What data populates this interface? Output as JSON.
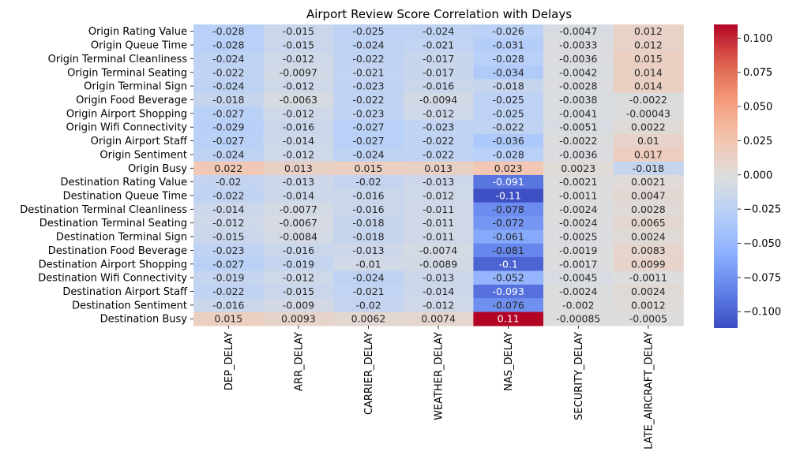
{
  "chart_data": {
    "type": "heatmap",
    "title": "Airport Review Score Correlation with Delays",
    "columns": [
      "DEP_DELAY",
      "ARR_DELAY",
      "CARRIER_DELAY",
      "WEATHER_DELAY",
      "NAS_DELAY",
      "SECURITY_DELAY",
      "LATE_AIRCRAFT_DELAY"
    ],
    "rows": [
      "Origin Rating Value",
      "Origin Queue Time",
      "Origin Terminal Cleanliness",
      "Origin Terminal Seating",
      "Origin Terminal Sign",
      "Origin Food Beverage",
      "Origin Airport Shopping",
      "Origin Wifi Connectivity",
      "Origin Airport Staff",
      "Origin Sentiment",
      "Origin Busy",
      "Destination Rating Value",
      "Destination Queue Time",
      "Destination Terminal Cleanliness",
      "Destination Terminal Seating",
      "Destination Terminal Sign",
      "Destination Food Beverage",
      "Destination Airport Shopping",
      "Destination Wifi Connectivity",
      "Destination Airport Staff",
      "Destination Sentiment",
      "Destination Busy"
    ],
    "values": [
      [
        -0.028,
        -0.015,
        -0.025,
        -0.024,
        -0.026,
        -0.0047,
        0.012
      ],
      [
        -0.028,
        -0.015,
        -0.024,
        -0.021,
        -0.031,
        -0.0033,
        0.012
      ],
      [
        -0.024,
        -0.012,
        -0.022,
        -0.017,
        -0.028,
        -0.0036,
        0.015
      ],
      [
        -0.022,
        -0.0097,
        -0.021,
        -0.017,
        -0.034,
        -0.0042,
        0.014
      ],
      [
        -0.024,
        -0.012,
        -0.023,
        -0.016,
        -0.018,
        -0.0028,
        0.014
      ],
      [
        -0.018,
        -0.0063,
        -0.022,
        -0.0094,
        -0.025,
        -0.0038,
        -0.0022
      ],
      [
        -0.027,
        -0.012,
        -0.023,
        -0.012,
        -0.025,
        -0.0041,
        -0.00043
      ],
      [
        -0.029,
        -0.016,
        -0.027,
        -0.023,
        -0.022,
        -0.0051,
        0.0022
      ],
      [
        -0.027,
        -0.014,
        -0.027,
        -0.022,
        -0.036,
        -0.0022,
        0.01
      ],
      [
        -0.024,
        -0.012,
        -0.024,
        -0.022,
        -0.028,
        -0.0036,
        0.017
      ],
      [
        0.022,
        0.013,
        0.015,
        0.013,
        0.023,
        0.0023,
        -0.018
      ],
      [
        -0.02,
        -0.013,
        -0.02,
        -0.013,
        -0.091,
        -0.0021,
        0.0021
      ],
      [
        -0.022,
        -0.014,
        -0.016,
        -0.012,
        -0.11,
        -0.0011,
        0.0047
      ],
      [
        -0.014,
        -0.0077,
        -0.016,
        -0.011,
        -0.078,
        -0.0024,
        0.0028
      ],
      [
        -0.012,
        -0.0067,
        -0.018,
        -0.011,
        -0.072,
        -0.0024,
        0.0065
      ],
      [
        -0.015,
        -0.0084,
        -0.018,
        -0.011,
        -0.061,
        -0.0025,
        0.0024
      ],
      [
        -0.023,
        -0.016,
        -0.013,
        -0.0074,
        -0.081,
        -0.0019,
        0.0083
      ],
      [
        -0.027,
        -0.019,
        -0.01,
        -0.0089,
        -0.1,
        -0.0017,
        0.0099
      ],
      [
        -0.019,
        -0.012,
        -0.024,
        -0.013,
        -0.052,
        -0.0045,
        -0.0011
      ],
      [
        -0.022,
        -0.015,
        -0.021,
        -0.014,
        -0.093,
        -0.0024,
        0.0024
      ],
      [
        -0.016,
        -0.009,
        -0.02,
        -0.012,
        -0.076,
        -0.002,
        0.0012
      ],
      [
        0.015,
        0.0093,
        0.0062,
        0.0074,
        0.11,
        -0.00085,
        -0.0005
      ]
    ],
    "vmin": -0.112,
    "vmax": 0.11,
    "colormap": "coolwarm",
    "colorbar_ticks": [
      0.1,
      0.075,
      0.05,
      0.025,
      0.0,
      -0.025,
      -0.05,
      -0.075,
      -0.1
    ],
    "colorbar_tick_labels": [
      "0.100",
      "0.075",
      "0.050",
      "0.025",
      "0.000",
      "−0.025",
      "−0.050",
      "−0.075",
      "−0.100"
    ]
  }
}
